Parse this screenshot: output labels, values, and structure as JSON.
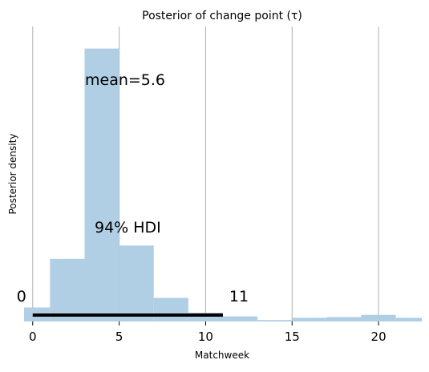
{
  "chart_data": {
    "type": "bar",
    "title": "Posterior of change point (τ)",
    "xlabel": "Matchweek",
    "ylabel": "Posterior density",
    "xlim": [
      -0.5,
      22.5
    ],
    "ylim": [
      0,
      0.4
    ],
    "x_ticks": [
      0,
      5,
      10,
      15,
      20
    ],
    "grid": "vertical",
    "bar_color": "#b0cfe4",
    "bins": [
      {
        "start": -1,
        "end": 1,
        "density": 0.019
      },
      {
        "start": 1,
        "end": 3,
        "density": 0.085
      },
      {
        "start": 3,
        "end": 5,
        "density": 0.37
      },
      {
        "start": 5,
        "end": 7,
        "density": 0.103
      },
      {
        "start": 7,
        "end": 9,
        "density": 0.032
      },
      {
        "start": 9,
        "end": 11,
        "density": 0.012
      },
      {
        "start": 11,
        "end": 13,
        "density": 0.007
      },
      {
        "start": 13,
        "end": 15,
        "density": 0.002
      },
      {
        "start": 15,
        "end": 17,
        "density": 0.005
      },
      {
        "start": 17,
        "end": 19,
        "density": 0.006
      },
      {
        "start": 19,
        "end": 21,
        "density": 0.009
      },
      {
        "start": 21,
        "end": 23,
        "density": 0.005
      }
    ],
    "mean": {
      "label": "mean=5.6"
    },
    "hdi": {
      "label": "94% HDI",
      "low": 0,
      "high": 11,
      "low_label": "0",
      "high_label": "11",
      "color": "#000000"
    }
  }
}
